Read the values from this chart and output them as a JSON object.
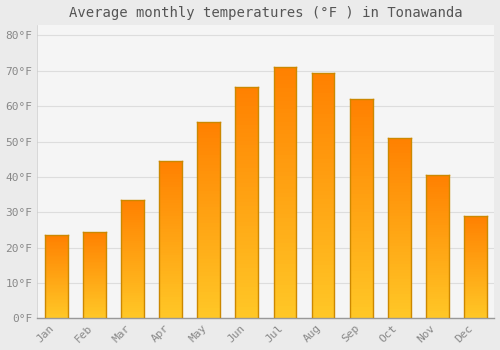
{
  "title": "Average monthly temperatures (°F ) in Tonawanda",
  "months": [
    "Jan",
    "Feb",
    "Mar",
    "Apr",
    "May",
    "Jun",
    "Jul",
    "Aug",
    "Sep",
    "Oct",
    "Nov",
    "Dec"
  ],
  "values": [
    23.5,
    24.5,
    33.5,
    44.5,
    55.5,
    65.5,
    71.0,
    69.5,
    62.0,
    51.0,
    40.5,
    29.0
  ],
  "bar_color_mid": "#FFA500",
  "bar_color_light": "#FFD070",
  "bar_color_dark": "#E08000",
  "bar_edge_color": "#CC8800",
  "background_color": "#ebebeb",
  "plot_bg_color": "#f5f5f5",
  "grid_color": "#dddddd",
  "ytick_labels": [
    "0°F",
    "10°F",
    "20°F",
    "30°F",
    "40°F",
    "50°F",
    "60°F",
    "70°F",
    "80°F"
  ],
  "ytick_values": [
    0,
    10,
    20,
    30,
    40,
    50,
    60,
    70,
    80
  ],
  "ylim": [
    0,
    83
  ],
  "title_fontsize": 10,
  "tick_fontsize": 8,
  "title_color": "#555555",
  "tick_color": "#888888",
  "font_family": "monospace",
  "bar_width": 0.6,
  "n_gradient_strips": 60
}
